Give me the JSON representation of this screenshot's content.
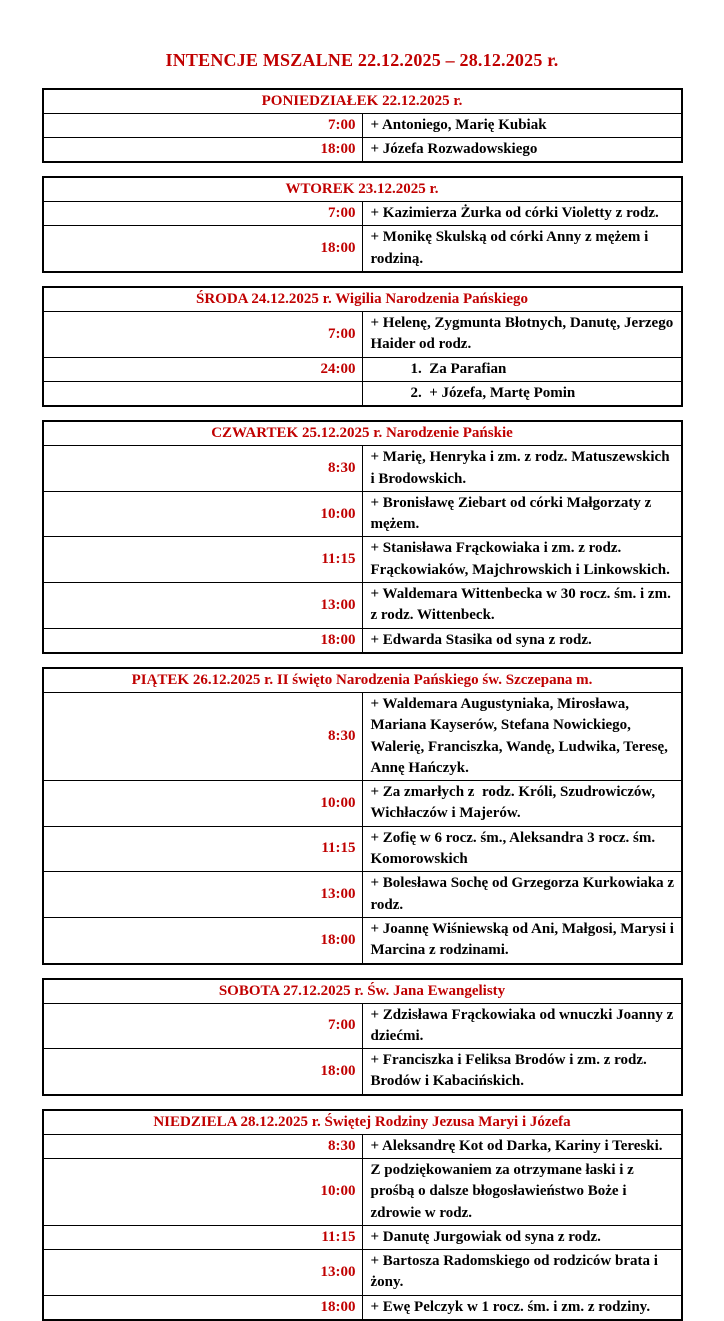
{
  "page_title": "INTENCJE MSZALNE 22.12.2025 – 28.12.2025 r.",
  "colors": {
    "accent_red": "#C00000",
    "text_black": "#000000",
    "border_black": "#000000",
    "background": "#ffffff"
  },
  "days": [
    {
      "header": "PONIEDZIAŁEK 22.12.2025 r.",
      "rows": [
        {
          "time": "7:00",
          "intention": "+ Antoniego, Marię Kubiak",
          "indent": false
        },
        {
          "time": "18:00",
          "intention": "+ Józefa Rozwadowskiego",
          "indent": false
        }
      ]
    },
    {
      "header": "WTOREK 23.12.2025 r.",
      "rows": [
        {
          "time": "7:00",
          "intention": "+ Kazimierza Żurka od córki Violetty z rodz.",
          "indent": false
        },
        {
          "time": "18:00",
          "intention": "+ Monikę Skulską od córki Anny z mężem i rodziną.",
          "indent": false
        }
      ]
    },
    {
      "header": "ŚRODA 24.12.2025 r. Wigilia Narodzenia Pańskiego",
      "rows": [
        {
          "time": "7:00",
          "intention": "+ Helenę, Zygmunta Błotnych, Danutę, Jerzego Haider od rodz.",
          "indent": false
        },
        {
          "time": "24:00",
          "intention": "1.  Za Parafian",
          "indent": true
        },
        {
          "time": "",
          "intention": "2.  + Józefa, Martę Pomin",
          "indent": true
        }
      ]
    },
    {
      "header": "CZWARTEK 25.12.2025 r. Narodzenie Pańskie",
      "rows": [
        {
          "time": "8:30",
          "intention": "+ Marię, Henryka i zm. z rodz. Matuszewskich i Brodowskich.",
          "indent": false
        },
        {
          "time": "10:00",
          "intention": "+ Bronisławę Ziebart od córki Małgorzaty z mężem.",
          "indent": false
        },
        {
          "time": "11:15",
          "intention": "+ Stanisława Frąckowiaka i zm. z rodz. Frąckowiaków, Majchrowskich i Linkowskich.",
          "indent": false
        },
        {
          "time": "13:00",
          "intention": "+ Waldemara Wittenbecka w 30 rocz. śm. i zm. z rodz. Wittenbeck.",
          "indent": false
        },
        {
          "time": "18:00",
          "intention": "+ Edwarda Stasika od syna z rodz.",
          "indent": false
        }
      ]
    },
    {
      "header": "PIĄTEK 26.12.2025 r. II święto Narodzenia Pańskiego św. Szczepana m.",
      "rows": [
        {
          "time": "8:30",
          "intention": "+ Waldemara Augustyniaka, Mirosława, Mariana Kayserów, Stefana Nowickiego, Walerię, Franciszka, Wandę, Ludwika, Teresę, Annę Hańczyk.",
          "indent": false
        },
        {
          "time": "10:00",
          "intention": "+ Za zmarłych z  rodz. Króli, Szudrowiczów, Wichłaczów i Majerów.",
          "indent": false
        },
        {
          "time": "11:15",
          "intention": "+ Zofię w 6 rocz. śm., Aleksandra 3 rocz. śm. Komorowskich",
          "indent": false
        },
        {
          "time": "13:00",
          "intention": "+ Bolesława Sochę od Grzegorza Kurkowiaka z rodz.",
          "indent": false
        },
        {
          "time": "18:00",
          "intention": "+ Joannę Wiśniewską od Ani, Małgosi, Marysi i Marcina z rodzinami.",
          "indent": false
        }
      ]
    },
    {
      "header": "SOBOTA 27.12.2025 r. Św. Jana Ewangelisty",
      "rows": [
        {
          "time": "7:00",
          "intention": "+ Zdzisława Frąckowiaka od wnuczki Joanny z dziećmi.",
          "indent": false
        },
        {
          "time": "18:00",
          "intention": "+ Franciszka i Feliksa Brodów i zm. z rodz. Brodów i Kabacińskich.",
          "indent": false
        }
      ]
    },
    {
      "header": "NIEDZIELA 28.12.2025 r. Świętej Rodziny Jezusa Maryi i Józefa",
      "rows": [
        {
          "time": "8:30",
          "intention": "+ Aleksandrę Kot od Darka, Kariny i Tereski.",
          "indent": false
        },
        {
          "time": "10:00",
          "intention": "Z podziękowaniem za otrzymane łaski i z prośbą o dalsze błogosławieństwo Boże i zdrowie w rodz.",
          "indent": false
        },
        {
          "time": "11:15",
          "intention": "+ Danutę Jurgowiak od syna z rodz.",
          "indent": false
        },
        {
          "time": "13:00",
          "intention": "+ Bartosza Radomskiego od rodziców brata i żony.",
          "indent": false
        },
        {
          "time": "18:00",
          "intention": "+ Ewę Pelczyk w 1 rocz. śm. i zm. z rodziny.",
          "indent": false
        }
      ]
    }
  ]
}
